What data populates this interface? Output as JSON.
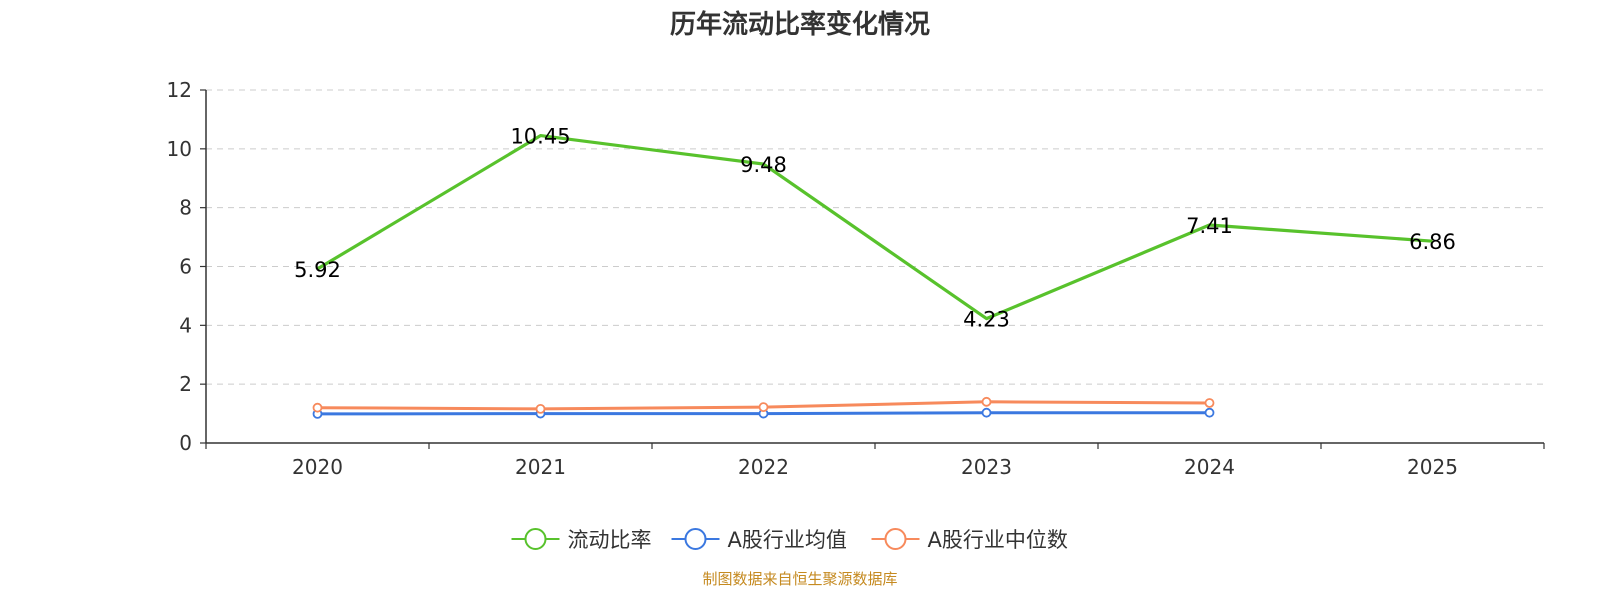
{
  "chart_data": {
    "type": "line",
    "title": "历年流动比率变化情况",
    "categories": [
      "2020",
      "2021",
      "2022",
      "2023",
      "2024",
      "2025"
    ],
    "ylim": [
      0,
      12
    ],
    "yticks": [
      0,
      2,
      4,
      6,
      8,
      10,
      12
    ],
    "grid": true,
    "legend_position": "bottom-center",
    "series": [
      {
        "name": "流动比率",
        "color": "#58c22c",
        "values": [
          5.92,
          10.45,
          9.48,
          4.23,
          7.41,
          6.86
        ],
        "labels": [
          "5.92",
          "10.45",
          "9.48",
          "4.23",
          "7.41",
          "6.86"
        ],
        "show_labels": true
      },
      {
        "name": "A股行业均值",
        "color": "#3b78e0",
        "values": [
          0.99,
          1.0,
          1.0,
          1.03,
          1.03,
          null
        ],
        "show_labels": false
      },
      {
        "name": "A股行业中位数",
        "color": "#f78a5c",
        "values": [
          1.2,
          1.16,
          1.22,
          1.4,
          1.36,
          null
        ],
        "show_labels": false
      }
    ]
  },
  "footer": {
    "source": "制图数据来自恒生聚源数据库"
  }
}
